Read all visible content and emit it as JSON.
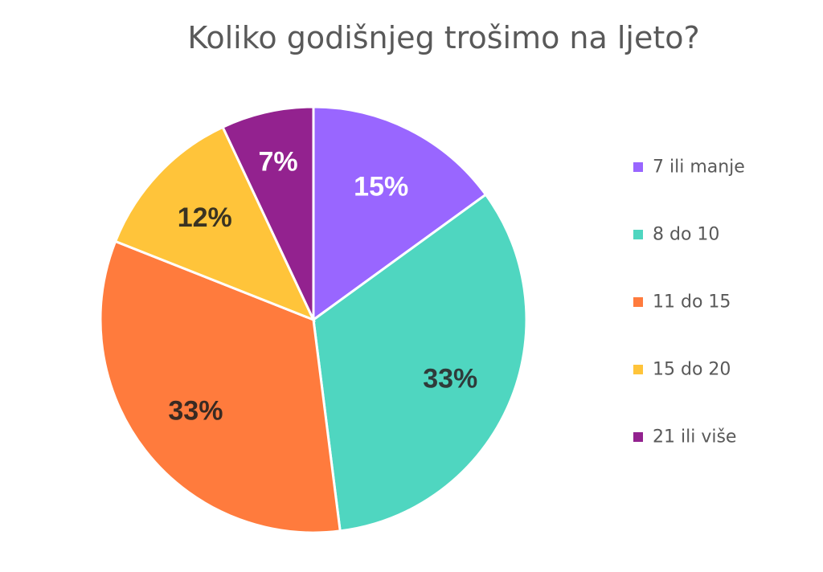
{
  "chart_data": {
    "type": "pie",
    "title": "Koliko godišnjeg trošimo na ljeto?",
    "legend_position": "right",
    "slices": [
      {
        "label": "7 ili manje",
        "value": 15,
        "display": "15%",
        "color": "#9966ff",
        "label_color": "#ffffff"
      },
      {
        "label": "8 do 10",
        "value": 33,
        "display": "33%",
        "color": "#4fd6c0",
        "label_color": "#2f3b3a"
      },
      {
        "label": "11 do 15",
        "value": 33,
        "display": "33%",
        "color": "#ff7b3d",
        "label_color": "#3a2a22"
      },
      {
        "label": "15 do 20",
        "value": 12,
        "display": "12%",
        "color": "#ffc43a",
        "label_color": "#3a3322"
      },
      {
        "label": "21 ili više",
        "value": 7,
        "display": "7%",
        "color": "#93228f",
        "label_color": "#ffffff"
      }
    ]
  }
}
